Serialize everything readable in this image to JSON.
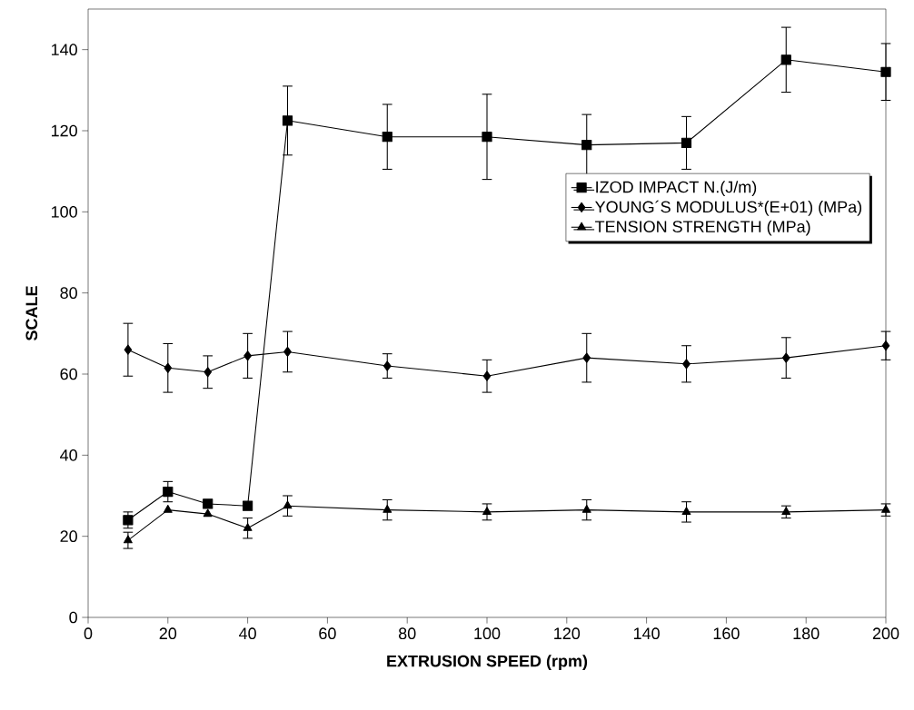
{
  "chart_data": {
    "type": "line",
    "xlabel": "EXTRUSION SPEED  (rpm)",
    "ylabel": "SCALE",
    "x": [
      10,
      20,
      30,
      40,
      50,
      75,
      100,
      125,
      150,
      175,
      200
    ],
    "series": [
      {
        "name": "IZOD IMPACT  N.(J/m)",
        "color": "#000000",
        "marker": "square",
        "values": [
          24,
          31,
          28,
          27.5,
          122.5,
          118.5,
          118.5,
          116.5,
          117,
          137.5,
          134.5
        ],
        "errors": [
          2,
          2.5,
          null,
          null,
          8.5,
          8,
          10.5,
          7.5,
          6.5,
          8,
          7
        ]
      },
      {
        "name": "YOUNG´S MODULUS*(E+01) (MPa)",
        "color": "#000000",
        "marker": "diamond",
        "values": [
          66,
          61.5,
          60.5,
          64.5,
          65.5,
          62,
          59.5,
          64,
          62.5,
          64,
          67
        ],
        "errors": [
          6.5,
          6,
          4,
          5.5,
          5,
          3,
          4,
          6,
          4.5,
          5,
          3.5
        ]
      },
      {
        "name": "TENSION STRENGTH (MPa)",
        "color": "#000000",
        "marker": "triangle",
        "values": [
          19,
          26.5,
          25.5,
          22,
          27.5,
          26.5,
          26,
          26.5,
          26,
          26,
          26.5
        ],
        "errors": [
          2,
          null,
          null,
          2.5,
          2.5,
          2.5,
          2,
          2.5,
          2.5,
          1.5,
          1.5
        ]
      }
    ],
    "xlim": [
      0,
      200
    ],
    "ylim": [
      0,
      150
    ],
    "xticks": [
      0,
      20,
      40,
      60,
      80,
      100,
      120,
      140,
      160,
      180,
      200
    ],
    "yticks": [
      0,
      20,
      40,
      60,
      80,
      100,
      120,
      140
    ],
    "grid": false,
    "legend": "right",
    "line_style": "solid"
  }
}
